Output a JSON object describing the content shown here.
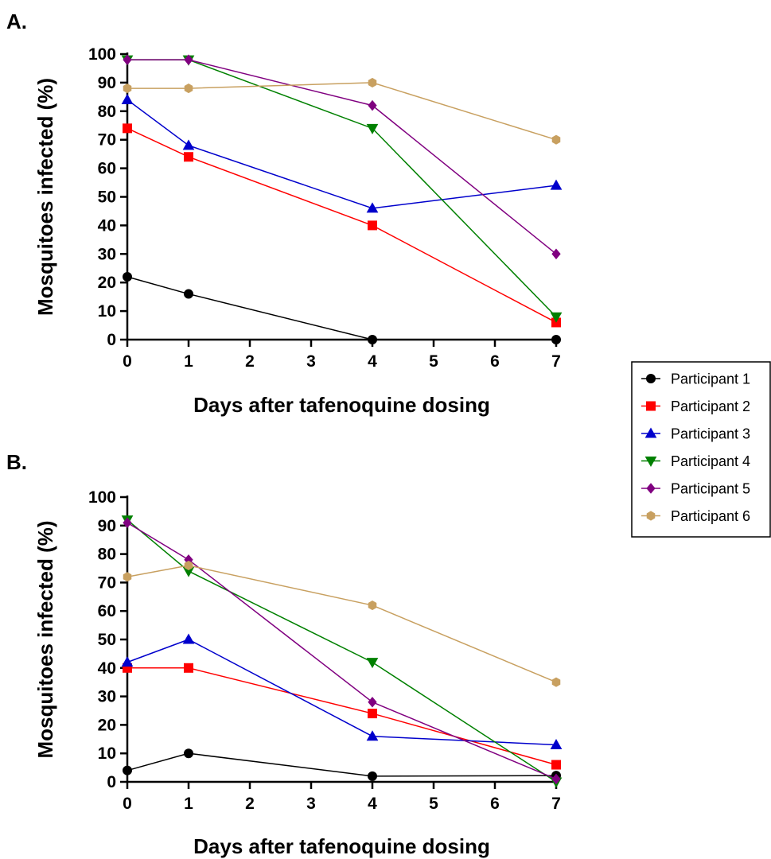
{
  "chart_data": [
    {
      "panel_label": "A.",
      "type": "line",
      "xlabel": "Days after tafenoquine dosing",
      "ylabel": "Mosquitoes infected (%)",
      "xlim": [
        0,
        7
      ],
      "ylim": [
        0,
        100
      ],
      "xticks": [
        0,
        1,
        2,
        3,
        4,
        5,
        6,
        7
      ],
      "yticks": [
        0,
        10,
        20,
        30,
        40,
        50,
        60,
        70,
        80,
        90,
        100
      ],
      "x": [
        0,
        1,
        4,
        7
      ],
      "series": [
        {
          "name": "Participant 1",
          "color": "#000000",
          "marker": "circle",
          "values": [
            22,
            16,
            0,
            0
          ]
        },
        {
          "name": "Participant 2",
          "color": "#ff0000",
          "marker": "square",
          "values": [
            74,
            64,
            40,
            6
          ]
        },
        {
          "name": "Participant 3",
          "color": "#0000cc",
          "marker": "triangle-up",
          "values": [
            84,
            68,
            46,
            54
          ]
        },
        {
          "name": "Participant 4",
          "color": "#008000",
          "marker": "triangle-down",
          "values": [
            98,
            98,
            74,
            8
          ]
        },
        {
          "name": "Participant 5",
          "color": "#800080",
          "marker": "diamond",
          "values": [
            98,
            98,
            82,
            30
          ]
        },
        {
          "name": "Participant 6",
          "color": "#c8a060",
          "marker": "hexagon",
          "values": [
            88,
            88,
            90,
            70
          ]
        }
      ]
    },
    {
      "panel_label": "B.",
      "type": "line",
      "xlabel": "Days after tafenoquine dosing",
      "ylabel": "Mosquitoes infected (%)",
      "xlim": [
        0,
        7
      ],
      "ylim": [
        0,
        100
      ],
      "xticks": [
        0,
        1,
        2,
        3,
        4,
        5,
        6,
        7
      ],
      "yticks": [
        0,
        10,
        20,
        30,
        40,
        50,
        60,
        70,
        80,
        90,
        100
      ],
      "x": [
        0,
        1,
        4,
        7
      ],
      "series": [
        {
          "name": "Participant 1",
          "color": "#000000",
          "marker": "circle",
          "values": [
            4,
            10,
            2,
            2.2
          ]
        },
        {
          "name": "Participant 2",
          "color": "#ff0000",
          "marker": "square",
          "values": [
            40,
            40,
            24,
            6
          ]
        },
        {
          "name": "Participant 3",
          "color": "#0000cc",
          "marker": "triangle-up",
          "values": [
            42,
            50,
            16,
            13
          ]
        },
        {
          "name": "Participant 4",
          "color": "#008000",
          "marker": "triangle-down",
          "values": [
            92,
            74,
            42,
            0
          ]
        },
        {
          "name": "Participant 5",
          "color": "#800080",
          "marker": "diamond",
          "values": [
            91,
            78,
            28,
            1
          ]
        },
        {
          "name": "Participant 6",
          "color": "#c8a060",
          "marker": "hexagon",
          "values": [
            72,
            76,
            62,
            35
          ]
        }
      ]
    }
  ],
  "legend": {
    "placement": "right",
    "entries": [
      "Participant 1",
      "Participant 2",
      "Participant 3",
      "Participant 4",
      "Participant 5",
      "Participant 6"
    ]
  }
}
